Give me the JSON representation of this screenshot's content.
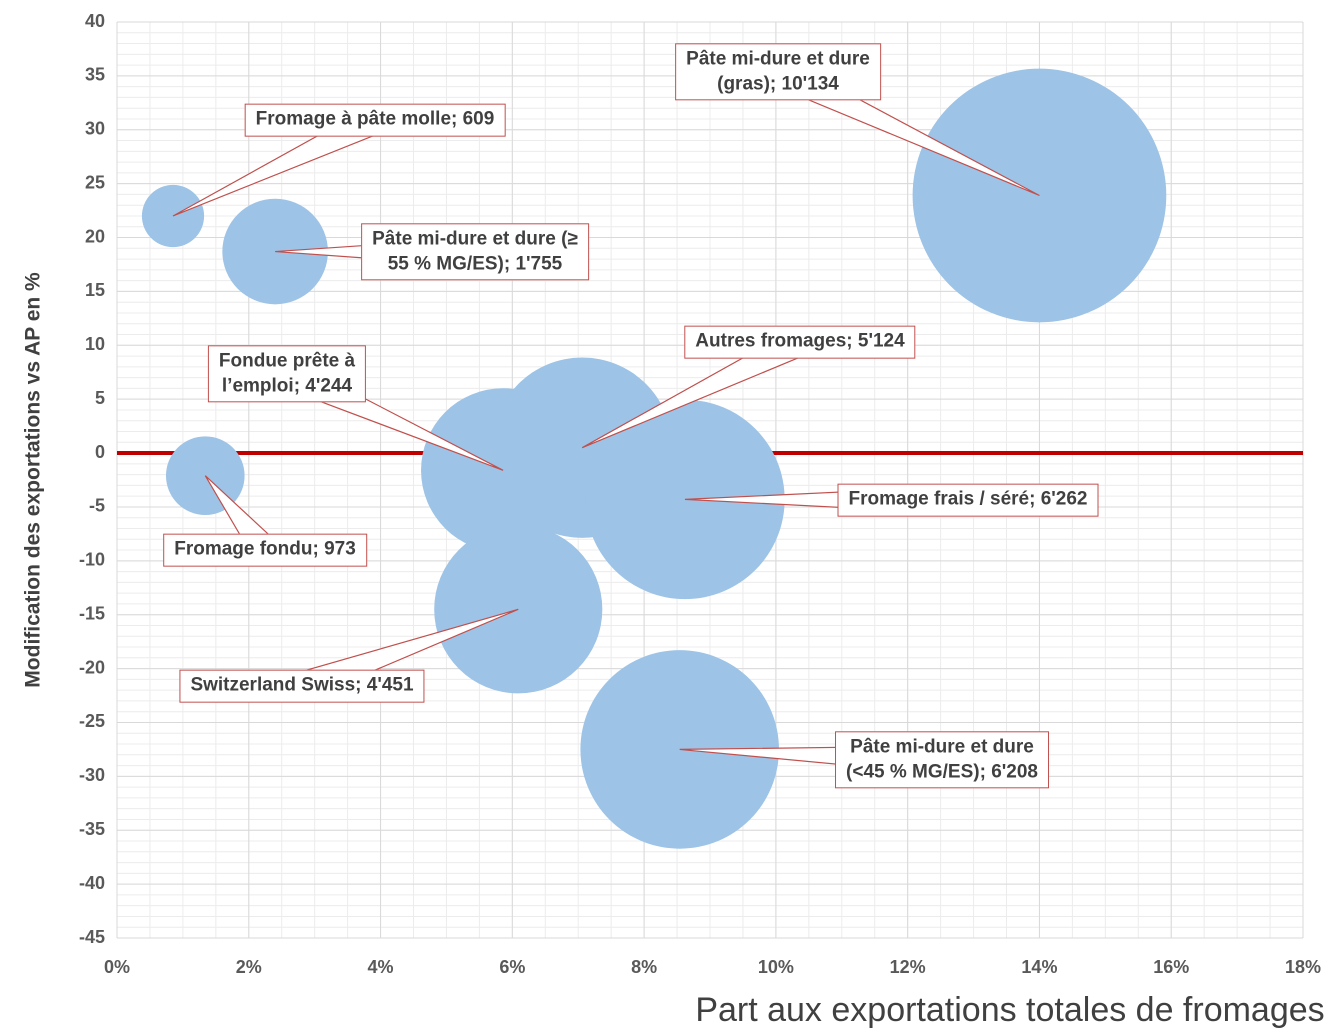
{
  "chart_data": {
    "type": "bubble",
    "x_label": "Part aux exportations totales de fromages",
    "y_label": "Modification des exportations vs AP en %",
    "series": [
      {
        "color": "#9dc3e6",
        "x": [
          0.85,
          2.4,
          14.0,
          5.86,
          7.06,
          8.62,
          1.34,
          6.09,
          8.54
        ],
        "values": [
          22.0,
          18.7,
          23.9,
          -1.6,
          0.5,
          -4.3,
          -2.1,
          -14.5,
          -27.5
        ],
        "sizes": [
          609,
          1755,
          10134,
          4244,
          5124,
          6262,
          973,
          4451,
          6208
        ],
        "labels": [
          "Fromage à pâte molle; 609",
          "Pâte mi-dure et dure (≥\n55 % MG/ES); 1'755",
          "Pâte mi-dure et dure\n(gras); 10'134",
          "Fondue prête à\nl’emploi; 4'244",
          "Autres fromages; 5'124",
          "Fromage frais / séré; 6'262",
          "Fromage fondu; 973",
          "Switzerland Swiss; 4'451",
          "Pâte mi-dure et dure\n(<45 % MG/ES); 6'208"
        ]
      }
    ],
    "label_border_color": "#c0504d",
    "reference_line": {
      "y": 0,
      "color": "#c00000"
    },
    "xlim": [
      0,
      18
    ],
    "xticks": [
      {
        "value": 0,
        "label": "0%"
      },
      {
        "value": 2,
        "label": "2%"
      },
      {
        "value": 4,
        "label": "4%"
      },
      {
        "value": 6,
        "label": "6%"
      },
      {
        "value": 8,
        "label": "8%"
      },
      {
        "value": 10,
        "label": "10%"
      },
      {
        "value": 12,
        "label": "12%"
      },
      {
        "value": 14,
        "label": "14%"
      },
      {
        "value": 16,
        "label": "16%"
      },
      {
        "value": 18,
        "label": "18%"
      }
    ],
    "ylim": [
      -45,
      40
    ],
    "yticks": [
      -45,
      -40,
      -35,
      -30,
      -25,
      -20,
      -15,
      -10,
      -5,
      0,
      5,
      10,
      15,
      20,
      25,
      30,
      35,
      40
    ],
    "grid": true,
    "minor_grid": {
      "x_step": 0.5,
      "y_step": 1
    }
  }
}
